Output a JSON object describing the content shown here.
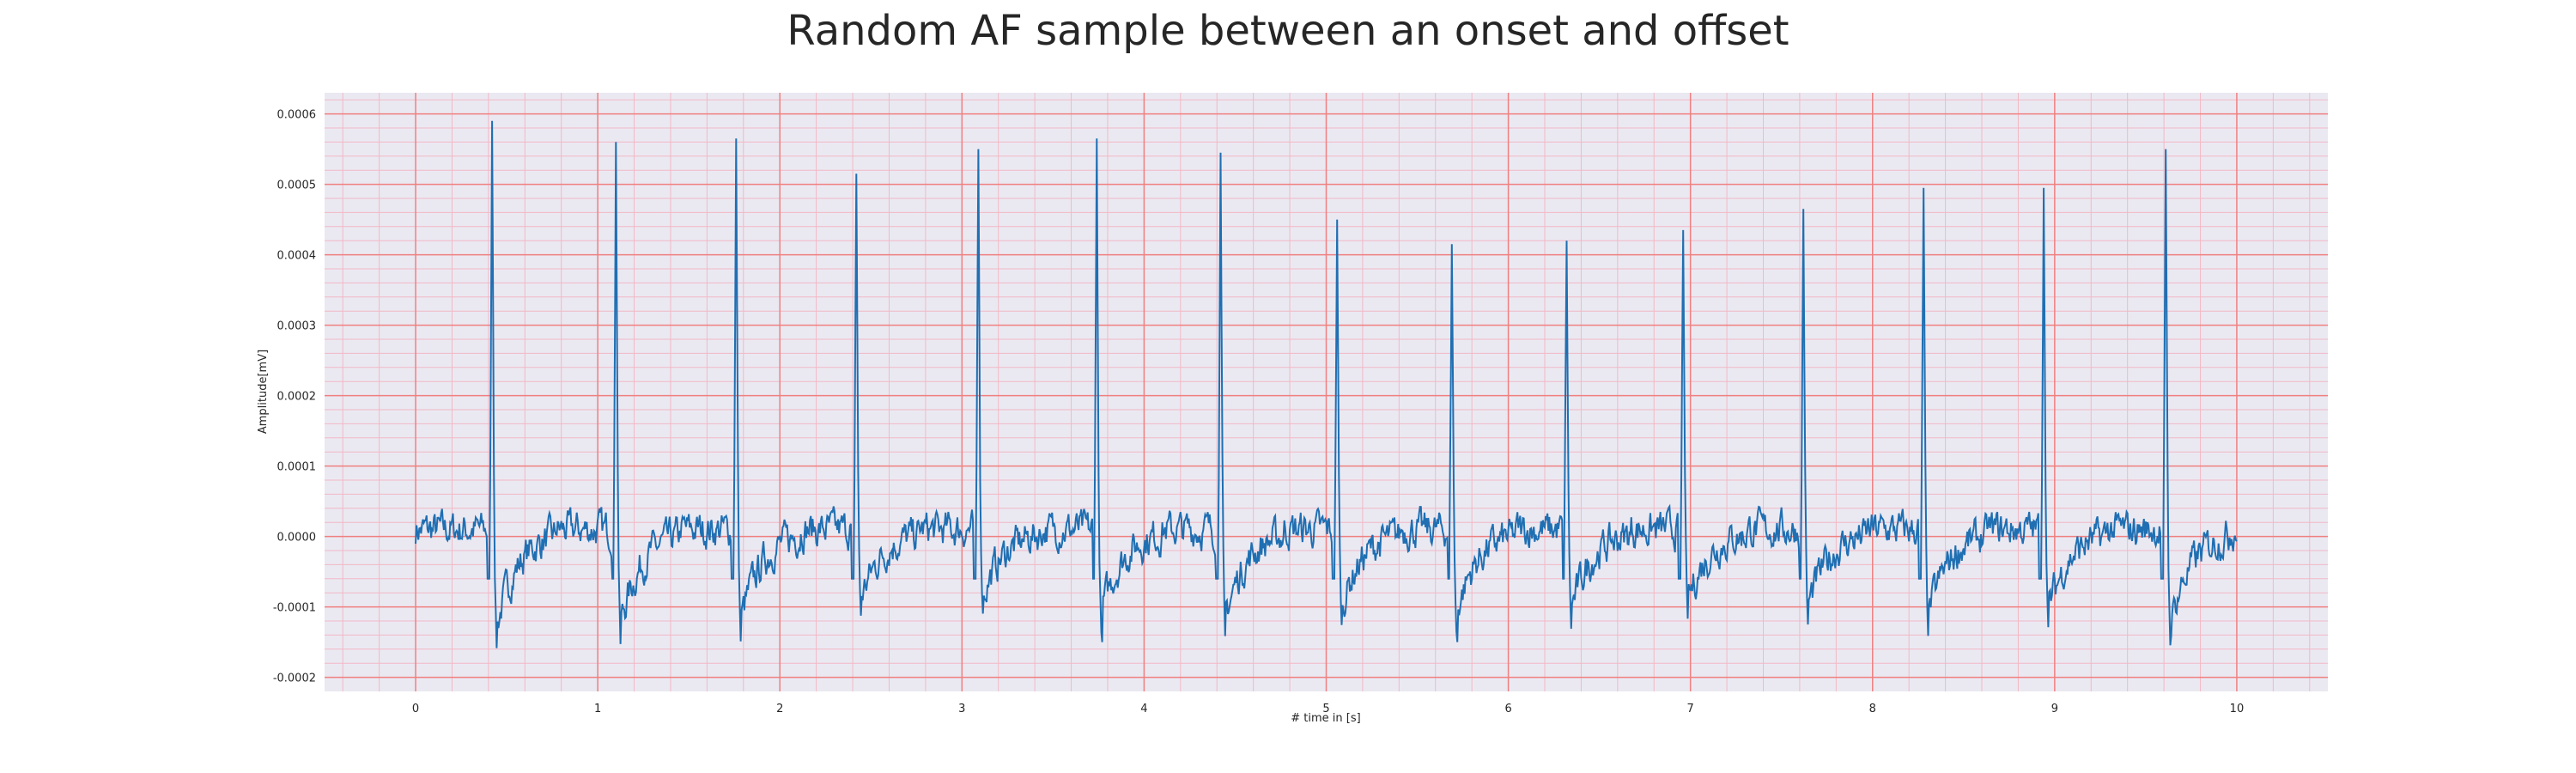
{
  "chart_data": {
    "type": "line",
    "title": "Random AF sample between an onset and offset",
    "xlabel": "# time in [s]",
    "ylabel": "Amplitude[mV]",
    "xlim": [
      -0.5,
      10.5
    ],
    "ylim": [
      -0.00022,
      0.00063
    ],
    "x_ticks": [
      0,
      1,
      2,
      3,
      4,
      5,
      6,
      7,
      8,
      9,
      10
    ],
    "y_ticks": [
      -0.0002,
      -0.0001,
      0.0,
      0.0001,
      0.0002,
      0.0003,
      0.0004,
      0.0005,
      0.0006
    ],
    "y_tick_labels": [
      "-0.0002",
      "-0.0001",
      "0.0000",
      "0.0001",
      "0.0002",
      "0.0003",
      "0.0004",
      "0.0005",
      "0.0006"
    ],
    "grid": true,
    "grid_style": "ecg-paper",
    "colors": {
      "background": "#eae9f2",
      "major_grid": "#f08080",
      "minor_grid": "#f2b8c4",
      "series": "#1f6fb2"
    },
    "series": [
      {
        "x_range": [
          0,
          10
        ],
        "baseline": 1e-05,
        "qrs_peaks": [
          {
            "t": 0.42,
            "r": 0.00059,
            "s": -0.000175
          },
          {
            "t": 1.1,
            "r": 0.00056,
            "s": -0.00017
          },
          {
            "t": 1.76,
            "r": 0.000565,
            "s": -0.000165
          },
          {
            "t": 2.42,
            "r": 0.000515,
            "s": -0.000125
          },
          {
            "t": 3.09,
            "r": 0.00055,
            "s": -0.00012
          },
          {
            "t": 3.74,
            "r": 0.000565,
            "s": -0.00015
          },
          {
            "t": 4.42,
            "r": 0.000545,
            "s": -0.00016
          },
          {
            "t": 5.06,
            "r": 0.00045,
            "s": -0.00014
          },
          {
            "t": 5.69,
            "r": 0.000415,
            "s": -0.00015
          },
          {
            "t": 6.32,
            "r": 0.00042,
            "s": -0.000145
          },
          {
            "t": 6.96,
            "r": 0.000435,
            "s": -0.00013
          },
          {
            "t": 7.62,
            "r": 0.000465,
            "s": -0.00014
          },
          {
            "t": 8.28,
            "r": 0.000495,
            "s": -0.000155
          },
          {
            "t": 8.94,
            "r": 0.000495,
            "s": -0.000145
          },
          {
            "t": 9.61,
            "r": 0.00055,
            "s": -0.00017
          }
        ]
      }
    ]
  }
}
